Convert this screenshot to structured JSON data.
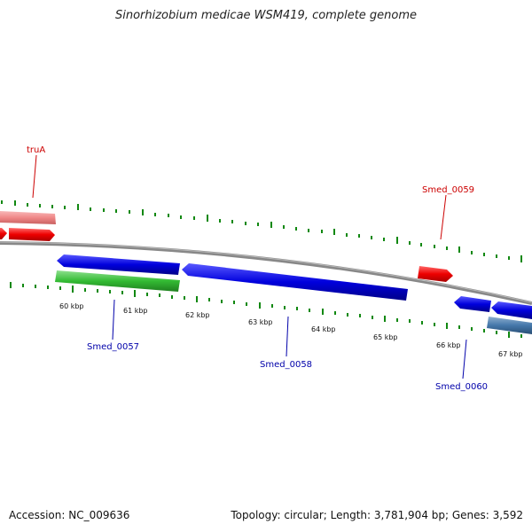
{
  "title": "Sinorhizobium medicae WSM419, complete genome",
  "footer": {
    "accession": "Accession: NC_009636",
    "stats": "Topology: circular; Length: 3,781,904 bp; Genes: 3,592"
  },
  "scale_labels": [
    "60 kbp",
    "61 kbp",
    "62 kbp",
    "63 kbp",
    "64 kbp",
    "65 kbp",
    "66 kbp",
    "67 kbp"
  ],
  "gene_labels": [
    {
      "text": "truA",
      "color": "#cc0000"
    },
    {
      "text": "Smed_0059",
      "color": "#cc0000"
    },
    {
      "text": "Smed_0057",
      "color": "#0000aa"
    },
    {
      "text": "Smed_0058",
      "color": "#0000aa"
    },
    {
      "text": "Smed_0060",
      "color": "#0000aa"
    }
  ],
  "colors": {
    "forward_cds": "#ee0000",
    "forward_cds_light": "#f08888",
    "reverse_cds": "#0000dd",
    "reverse_rna": "#33bb33",
    "reverse_other": "#4477aa",
    "backbone": "#888888",
    "ticks": "#118811"
  }
}
